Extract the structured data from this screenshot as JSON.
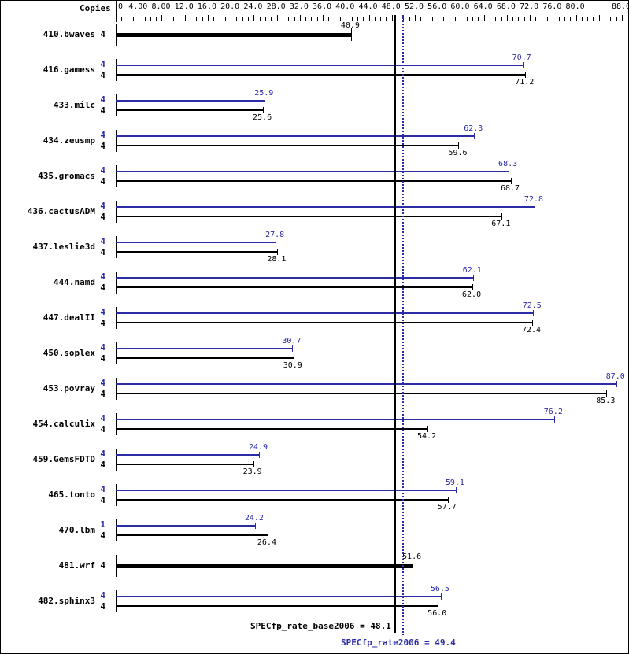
{
  "chart_data": {
    "type": "bar",
    "orientation": "horizontal",
    "title": "",
    "xlabel": "",
    "ylabel": "",
    "x_header": "Copies",
    "xlim": [
      0,
      88
    ],
    "tick_labels": [
      "0",
      "4.00",
      "8.00",
      "12.0",
      "16.0",
      "20.0",
      "24.0",
      "28.0",
      "32.0",
      "36.0",
      "40.0",
      "44.0",
      "48.0",
      "52.0",
      "56.0",
      "60.0",
      "64.0",
      "68.0",
      "72.0",
      "76.0",
      "80.0",
      "88.0"
    ],
    "tick_values": [
      0,
      4,
      8,
      12,
      16,
      20,
      24,
      28,
      32,
      36,
      40,
      44,
      48,
      52,
      56,
      60,
      64,
      68,
      72,
      76,
      80,
      88
    ],
    "grid": false,
    "colors": {
      "peak": "#2b2ba6",
      "base": "#000000"
    },
    "series": [
      {
        "name": "peak",
        "color": "#2b2ba6"
      },
      {
        "name": "base",
        "color": "#000000"
      }
    ],
    "categories": [
      "410.bwaves",
      "416.gamess",
      "433.milc",
      "434.zeusmp",
      "435.gromacs",
      "436.cactusADM",
      "437.leslie3d",
      "444.namd",
      "447.dealII",
      "450.soplex",
      "453.povray",
      "454.calculix",
      "459.GemsFDTD",
      "465.tonto",
      "470.lbm",
      "481.wrf",
      "482.sphinx3"
    ],
    "benchmarks": [
      {
        "name": "410.bwaves",
        "peak": null,
        "peak_copies": null,
        "base": 40.9,
        "base_copies": "4",
        "combined": true
      },
      {
        "name": "416.gamess",
        "peak": 70.7,
        "peak_copies": "4",
        "base": 71.2,
        "base_copies": "4"
      },
      {
        "name": "433.milc",
        "peak": 25.9,
        "peak_copies": "4",
        "base": 25.6,
        "base_copies": "4"
      },
      {
        "name": "434.zeusmp",
        "peak": 62.3,
        "peak_copies": "4",
        "base": 59.6,
        "base_copies": "4"
      },
      {
        "name": "435.gromacs",
        "peak": 68.3,
        "peak_copies": "4",
        "base": 68.7,
        "base_copies": "4"
      },
      {
        "name": "436.cactusADM",
        "peak": 72.8,
        "peak_copies": "4",
        "base": 67.1,
        "base_copies": "4"
      },
      {
        "name": "437.leslie3d",
        "peak": 27.8,
        "peak_copies": "4",
        "base": 28.1,
        "base_copies": "4"
      },
      {
        "name": "444.namd",
        "peak": 62.1,
        "peak_copies": "4",
        "base": 62.0,
        "base_copies": "4"
      },
      {
        "name": "447.dealII",
        "peak": 72.5,
        "peak_copies": "4",
        "base": 72.4,
        "base_copies": "4"
      },
      {
        "name": "450.soplex",
        "peak": 30.7,
        "peak_copies": "4",
        "base": 30.9,
        "base_copies": "4"
      },
      {
        "name": "453.povray",
        "peak": 87.0,
        "peak_copies": "4",
        "base": 85.3,
        "base_copies": "4"
      },
      {
        "name": "454.calculix",
        "peak": 76.2,
        "peak_copies": "4",
        "base": 54.2,
        "base_copies": "4"
      },
      {
        "name": "459.GemsFDTD",
        "peak": 24.9,
        "peak_copies": "4",
        "base": 23.9,
        "base_copies": "4"
      },
      {
        "name": "465.tonto",
        "peak": 59.1,
        "peak_copies": "4",
        "base": 57.7,
        "base_copies": "4"
      },
      {
        "name": "470.lbm",
        "peak": 24.2,
        "peak_copies": "1",
        "base": 26.4,
        "base_copies": "4"
      },
      {
        "name": "481.wrf",
        "peak": null,
        "peak_copies": null,
        "base": 51.6,
        "base_copies": "4",
        "combined": true
      },
      {
        "name": "482.sphinx3",
        "peak": 56.5,
        "peak_copies": "4",
        "base": 56.0,
        "base_copies": "4"
      }
    ],
    "reference_lines": [
      {
        "label": "SPECfp_rate_base2006 = 48.1",
        "value": 48.1,
        "style": "solid",
        "color": "#000000"
      },
      {
        "label": "SPECfp_rate2006 = 49.4",
        "value": 49.4,
        "style": "dotted",
        "color": "#2b2ba6"
      }
    ]
  },
  "labels": {
    "copies_header": "Copies",
    "base_summary": "SPECfp_rate_base2006 = 48.1",
    "peak_summary": "SPECfp_rate2006 = 49.4"
  }
}
